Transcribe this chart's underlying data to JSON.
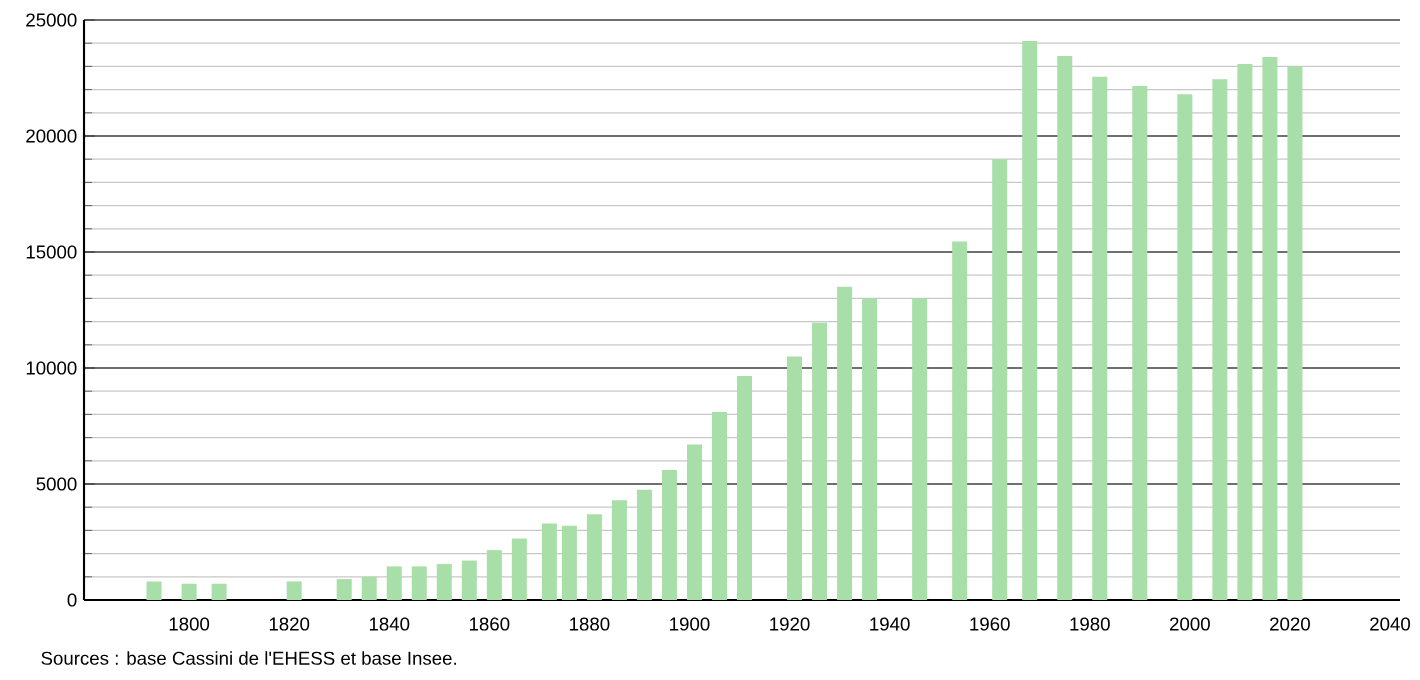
{
  "chart_data": {
    "type": "bar",
    "x": [
      1793,
      1800,
      1806,
      1821,
      1831,
      1836,
      1841,
      1846,
      1851,
      1856,
      1861,
      1866,
      1872,
      1876,
      1881,
      1886,
      1891,
      1896,
      1901,
      1906,
      1911,
      1921,
      1926,
      1931,
      1936,
      1946,
      1954,
      1962,
      1968,
      1975,
      1982,
      1990,
      1999,
      2006,
      2011,
      2016,
      2021
    ],
    "values": [
      800,
      700,
      700,
      800,
      900,
      1000,
      1450,
      1450,
      1550,
      1700,
      2150,
      2650,
      3300,
      3200,
      3700,
      4300,
      4750,
      5600,
      6700,
      8100,
      9650,
      10500,
      11950,
      13500,
      13000,
      13000,
      15450,
      19000,
      24100,
      23450,
      22550,
      22150,
      21800,
      22450,
      23100,
      23400,
      23000
    ],
    "color": "#a8dea8",
    "xlim": [
      1779,
      2042
    ],
    "xticks": [
      1800,
      1820,
      1840,
      1860,
      1880,
      1900,
      1920,
      1940,
      1960,
      1980,
      2000,
      2020,
      2040
    ],
    "ylim": [
      0,
      25000
    ],
    "yticks": [
      0,
      5000,
      10000,
      15000,
      20000,
      25000
    ],
    "grid": "y",
    "annotations": [
      "Sources : base Cassini de l'EHESS et base Insee."
    ]
  }
}
